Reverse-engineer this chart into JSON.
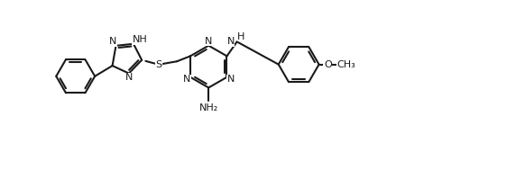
{
  "bg": "#ffffff",
  "lc": "#1a1a1a",
  "lw": 1.5,
  "fs": 8.0,
  "figsize": [
    5.72,
    1.89
  ],
  "dpi": 100,
  "xlim": [
    0.0,
    10.2
  ],
  "ylim": [
    -1.0,
    2.8
  ]
}
